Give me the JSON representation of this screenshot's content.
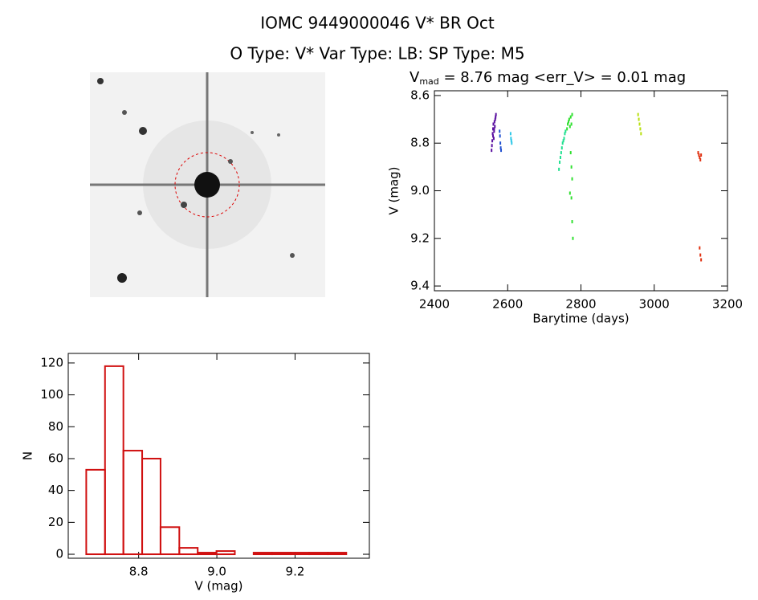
{
  "header": {
    "title": "IOMC 9449000046   V* BR Oct",
    "subtitle": "O Type: V*  Var Type: LB:  SP Type: M5"
  },
  "chart_data": [
    {
      "type": "scatter",
      "title": [
        "V",
        "mad",
        " = 8.76 mag <err_V> = 0.01 mag"
      ],
      "x_label": "Barytime (days)",
      "y_label": "V (mag)",
      "xlim": [
        2400,
        3200
      ],
      "xticks": [
        2400,
        2600,
        2800,
        3000,
        3200
      ],
      "ylim": [
        9.42,
        8.58
      ],
      "yticks": [
        8.6,
        8.8,
        {
          "value": 9,
          "label": "9.0"
        },
        9.2,
        9.4
      ],
      "series": [
        {
          "color": "#5a10a0",
          "x": [
            2556,
            2558,
            2559,
            2560,
            2561,
            2562,
            2563,
            2564,
            2565,
            2566,
            2567,
            2568,
            2557,
            2560,
            2563
          ],
          "values": [
            8.83,
            8.79,
            8.76,
            8.74,
            8.72,
            8.78,
            8.75,
            8.71,
            8.73,
            8.7,
            8.69,
            8.68,
            8.81,
            8.77,
            8.74
          ]
        },
        {
          "color": "#2050d0",
          "x": [
            2578,
            2579,
            2580,
            2581,
            2582
          ],
          "values": [
            8.75,
            8.77,
            8.8,
            8.82,
            8.83
          ]
        },
        {
          "color": "#30c8e8",
          "x": [
            2608,
            2609,
            2610,
            2611
          ],
          "values": [
            8.76,
            8.78,
            8.79,
            8.8
          ]
        },
        {
          "color": "#20e090",
          "x": [
            2740,
            2742,
            2744,
            2746,
            2748,
            2750,
            2752,
            2754,
            2756,
            2758
          ],
          "values": [
            8.91,
            8.88,
            8.86,
            8.84,
            8.82,
            8.8,
            8.79,
            8.78,
            8.76,
            8.75
          ]
        },
        {
          "color": "#30e030",
          "x": [
            2762,
            2764,
            2766,
            2768,
            2770,
            2772,
            2774,
            2776,
            2772,
            2774,
            2776,
            2770,
            2774,
            2776,
            2778
          ],
          "values": [
            8.74,
            8.72,
            8.71,
            8.7,
            8.73,
            8.69,
            8.72,
            8.68,
            8.84,
            8.9,
            8.95,
            9.01,
            9.03,
            9.13,
            9.2
          ]
        },
        {
          "color": "#b8e010",
          "x": [
            2956,
            2958,
            2960,
            2962,
            2964
          ],
          "values": [
            8.68,
            8.7,
            8.72,
            8.74,
            8.76
          ]
        },
        {
          "color": "#e03010",
          "x": [
            3120,
            3122,
            3124,
            3126,
            3128,
            3124,
            3126,
            3128
          ],
          "values": [
            8.84,
            8.85,
            8.86,
            8.87,
            8.85,
            9.24,
            9.27,
            9.29
          ]
        }
      ]
    },
    {
      "type": "histogram",
      "x_label": "V (mag)",
      "y_label": "N",
      "color": "#d01010",
      "bins": [
        8.666,
        8.714,
        8.761,
        8.809,
        8.856,
        8.904,
        8.951,
        8.999,
        9.046,
        9.094,
        9.141,
        9.189,
        9.236,
        9.284,
        9.331
      ],
      "values": [
        53,
        118,
        65,
        60,
        17,
        4,
        1,
        2,
        0,
        1,
        1,
        1,
        1,
        1
      ],
      "xlim": [
        8.62,
        9.39
      ],
      "xticks": [
        8.8,
        {
          "value": 9,
          "label": "9.0"
        },
        9.2
      ],
      "ylim": [
        -2.5,
        126
      ],
      "yticks": [
        0,
        20,
        40,
        60,
        80,
        100,
        120
      ]
    }
  ]
}
